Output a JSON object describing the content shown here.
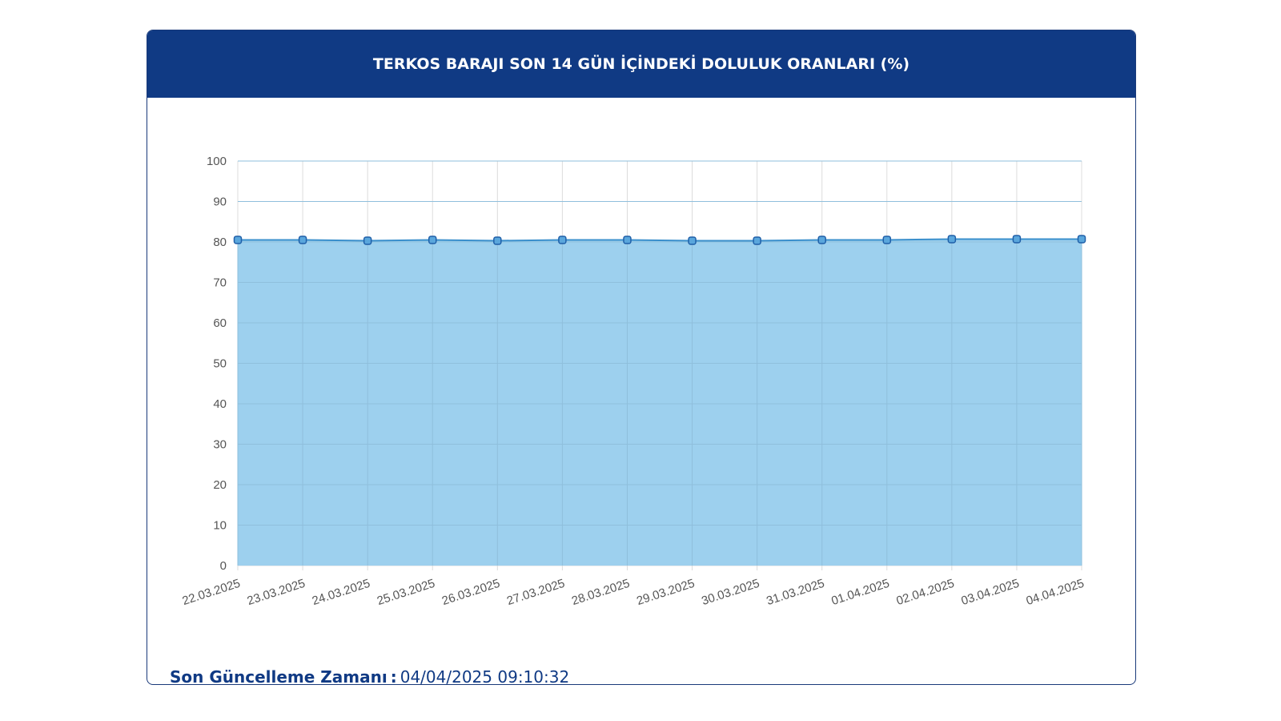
{
  "card": {
    "title": "TERKOS BARAJI SON 14 GÜN İÇİNDEKİ DOLULUK ORANLARI (%)"
  },
  "footer": {
    "label": "Son Güncelleme Zamanı",
    "separator": ":",
    "value": "04/04/2025 09:10:32"
  },
  "colors": {
    "header_bg": "#103a84",
    "area_fill": "#9dd0ee",
    "line": "#3a8fcc",
    "point_fill": "#5aa6dc",
    "point_stroke": "#1f5fa8",
    "grid": "#dcdcdc",
    "tick_text": "#555555"
  },
  "chart_data": {
    "type": "area",
    "title": "TERKOS BARAJI SON 14 GÜN İÇİNDEKİ DOLULUK ORANLARI (%)",
    "xlabel": "",
    "ylabel": "",
    "categories": [
      "22.03.2025",
      "23.03.2025",
      "24.03.2025",
      "25.03.2025",
      "26.03.2025",
      "27.03.2025",
      "28.03.2025",
      "29.03.2025",
      "30.03.2025",
      "31.03.2025",
      "01.04.2025",
      "02.04.2025",
      "03.04.2025",
      "04.04.2025"
    ],
    "series": [
      {
        "values": [
          80.5,
          80.5,
          80.3,
          80.5,
          80.3,
          80.5,
          80.5,
          80.3,
          80.3,
          80.5,
          80.5,
          80.7,
          80.7,
          80.7
        ]
      }
    ],
    "ylim": [
      0,
      100
    ],
    "yticks": [
      0,
      10,
      20,
      30,
      40,
      50,
      60,
      70,
      80,
      90,
      100
    ],
    "grid": true,
    "legend": "none"
  }
}
